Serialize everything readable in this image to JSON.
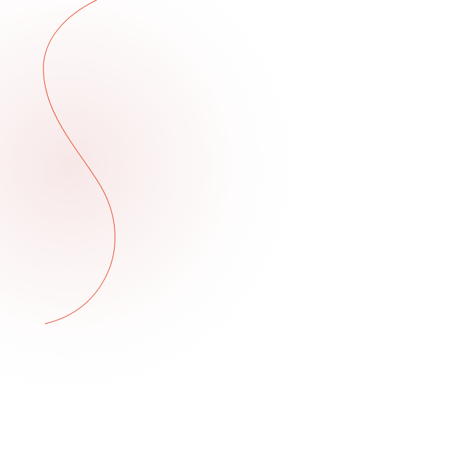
{
  "decoration": {
    "curve_color": "#e8482a",
    "glow_color": "#f5e1e1"
  }
}
